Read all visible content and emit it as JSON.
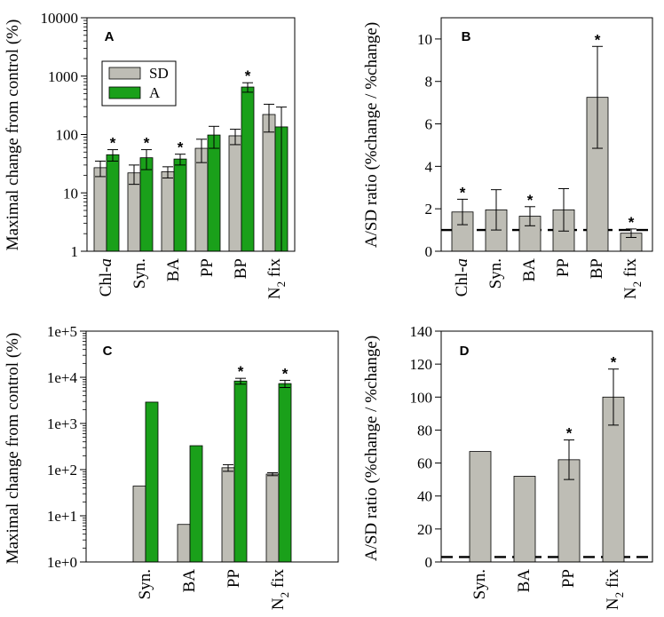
{
  "colors": {
    "sd": "#bebdb5",
    "a": "#1aa01a",
    "edge": "#000000"
  },
  "chart_data": [
    {
      "panel": "A",
      "type": "bar",
      "scale": "log",
      "ylim": [
        1,
        10000
      ],
      "ylabel": "Maximal change from control (%)",
      "yticks": [
        1,
        10,
        100,
        1000,
        10000
      ],
      "ytick_labels": [
        "1",
        "10",
        "100",
        "1000",
        "10000"
      ],
      "categories": [
        "Chl-a",
        "Syn.",
        "BA",
        "PP",
        "BP",
        "N2 fix"
      ],
      "category_labels": [
        [
          "Chl-",
          "a",
          ""
        ],
        [
          "Syn.",
          "",
          ""
        ],
        [
          "BA",
          "",
          ""
        ],
        [
          "PP",
          "",
          ""
        ],
        [
          "BP",
          "",
          ""
        ],
        [
          "N",
          "2",
          " fix"
        ]
      ],
      "legend": [
        "SD",
        "A"
      ],
      "series": [
        {
          "name": "SD",
          "values": [
            27,
            22,
            23,
            58,
            95,
            220
          ],
          "err": [
            8,
            8,
            5,
            25,
            28,
            110
          ]
        },
        {
          "name": "A",
          "values": [
            45,
            40,
            38,
            98,
            650,
            135
          ],
          "err": [
            10,
            15,
            8,
            40,
            120,
            160
          ]
        }
      ],
      "significant": [
        [
          false,
          true
        ],
        [
          false,
          true
        ],
        [
          false,
          true
        ],
        [
          false,
          false
        ],
        [
          false,
          true
        ],
        [
          false,
          false
        ]
      ],
      "star": "*"
    },
    {
      "panel": "B",
      "type": "bar",
      "scale": "linear",
      "ylim": [
        0,
        11
      ],
      "ylabel": "A/SD ratio (%change / %change)",
      "yticks": [
        0,
        2,
        4,
        6,
        8,
        10
      ],
      "ytick_labels": [
        "0",
        "2",
        "4",
        "6",
        "8",
        "10"
      ],
      "categories": [
        "Chl-a",
        "Syn.",
        "BA",
        "PP",
        "BP",
        "N2 fix"
      ],
      "category_labels": [
        [
          "Chl-",
          "a",
          ""
        ],
        [
          "Syn.",
          "",
          ""
        ],
        [
          "BA",
          "",
          ""
        ],
        [
          "PP",
          "",
          ""
        ],
        [
          "BP",
          "",
          ""
        ],
        [
          "N",
          "2",
          " fix"
        ]
      ],
      "series": [
        {
          "name": "ratio",
          "values": [
            1.85,
            1.95,
            1.65,
            1.95,
            7.25,
            0.85
          ],
          "err": [
            0.6,
            0.95,
            0.45,
            1.0,
            2.4,
            0.2
          ]
        }
      ],
      "significant": [
        [
          true
        ],
        [
          false
        ],
        [
          true
        ],
        [
          false
        ],
        [
          true
        ],
        [
          true
        ]
      ],
      "reference_line": 1,
      "star": "*"
    },
    {
      "panel": "C",
      "type": "bar",
      "scale": "log",
      "ylim": [
        1,
        100000
      ],
      "ylabel": "Maximal change from control (%)",
      "yticks": [
        1,
        10,
        100,
        1000,
        10000,
        100000
      ],
      "ytick_labels": [
        "1e+0",
        "1e+1",
        "1e+2",
        "1e+3",
        "1e+4",
        "1e+5"
      ],
      "categories": [
        "Syn.",
        "BA",
        "PP",
        "N2 fix"
      ],
      "category_labels": [
        [
          "Syn.",
          "",
          ""
        ],
        [
          "BA",
          "",
          ""
        ],
        [
          "PP",
          "",
          ""
        ],
        [
          "N",
          "2",
          " fix"
        ]
      ],
      "series": [
        {
          "name": "SD",
          "values": [
            44,
            6.5,
            110,
            80
          ],
          "err": [
            0,
            0,
            18,
            6
          ]
        },
        {
          "name": "A",
          "values": [
            2900,
            330,
            8300,
            7300
          ],
          "err": [
            0,
            0,
            1200,
            1300
          ]
        }
      ],
      "significant": [
        [
          false,
          false
        ],
        [
          false,
          false
        ],
        [
          false,
          true
        ],
        [
          false,
          true
        ]
      ],
      "star": "*"
    },
    {
      "panel": "D",
      "type": "bar",
      "scale": "linear",
      "ylim": [
        0,
        140
      ],
      "ylabel": "A/SD ratio (%change / %change)",
      "yticks": [
        0,
        20,
        40,
        60,
        80,
        100,
        120,
        140
      ],
      "ytick_labels": [
        "0",
        "20",
        "40",
        "60",
        "80",
        "100",
        "120",
        "140"
      ],
      "categories": [
        "Syn.",
        "BA",
        "PP",
        "N2 fix"
      ],
      "category_labels": [
        [
          "Syn.",
          "",
          ""
        ],
        [
          "BA",
          "",
          ""
        ],
        [
          "PP",
          "",
          ""
        ],
        [
          "N",
          "2",
          " fix"
        ]
      ],
      "series": [
        {
          "name": "ratio",
          "values": [
            67,
            52,
            62,
            100
          ],
          "err": [
            0,
            0,
            12,
            17
          ]
        }
      ],
      "significant": [
        [
          false
        ],
        [
          false
        ],
        [
          true
        ],
        [
          true
        ]
      ],
      "reference_line": 3,
      "star": "*"
    }
  ]
}
